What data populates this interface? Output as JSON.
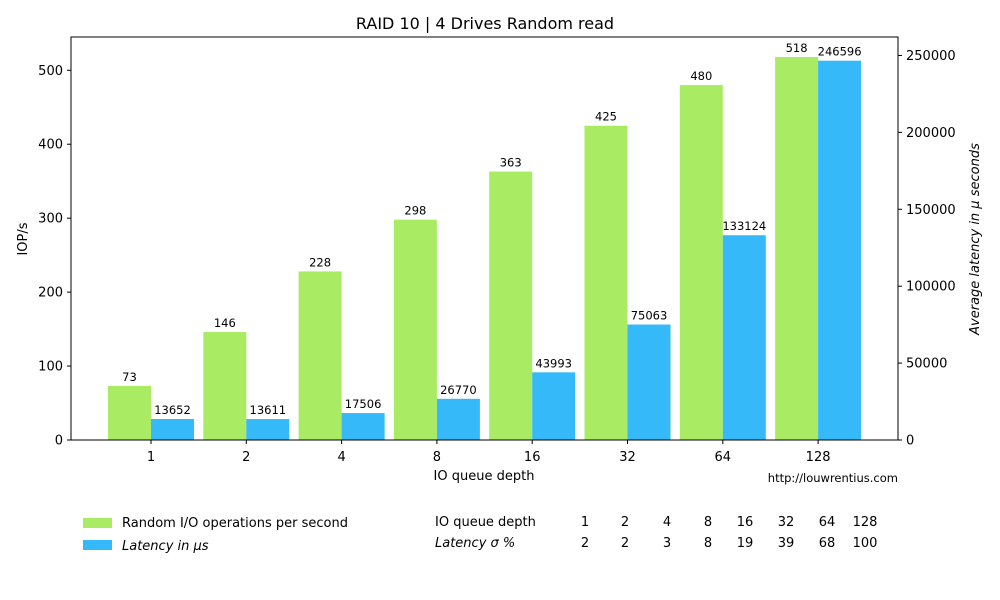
{
  "chart_data": {
    "type": "bar",
    "title": "RAID 10 | 4 Drives Random read",
    "xlabel": "IO queue depth",
    "ylabel_left": "IOP/s",
    "ylabel_right": "Average latency in μ seconds",
    "categories": [
      "1",
      "2",
      "4",
      "8",
      "16",
      "32",
      "64",
      "128"
    ],
    "series": [
      {
        "name": "Random I/O operations per second",
        "axis": "left",
        "color": "#a9ec64",
        "values": [
          73,
          146,
          228,
          298,
          363,
          425,
          480,
          518
        ]
      },
      {
        "name": "Latency in μs",
        "axis": "right",
        "color": "#36b9f8",
        "values": [
          13652,
          13611,
          17506,
          26770,
          43993,
          75063,
          133124,
          246596
        ]
      }
    ],
    "ylim_left": [
      0,
      545
    ],
    "ylim_right": [
      0,
      262000
    ],
    "yticks_left": [
      0,
      100,
      200,
      300,
      400,
      500
    ],
    "yticks_right": [
      0,
      50000,
      100000,
      150000,
      200000,
      250000
    ],
    "grid": false,
    "legend": "bottom-left"
  },
  "source_text": "http://louwrentius.com",
  "latency_table": {
    "row1_label": "IO queue depth",
    "row1": [
      "1",
      "2",
      "4",
      "8",
      "16",
      "32",
      "64",
      "128"
    ],
    "row2_label": "Latency σ %",
    "row2": [
      "2",
      "2",
      "3",
      "8",
      "19",
      "39",
      "68",
      "100"
    ]
  }
}
